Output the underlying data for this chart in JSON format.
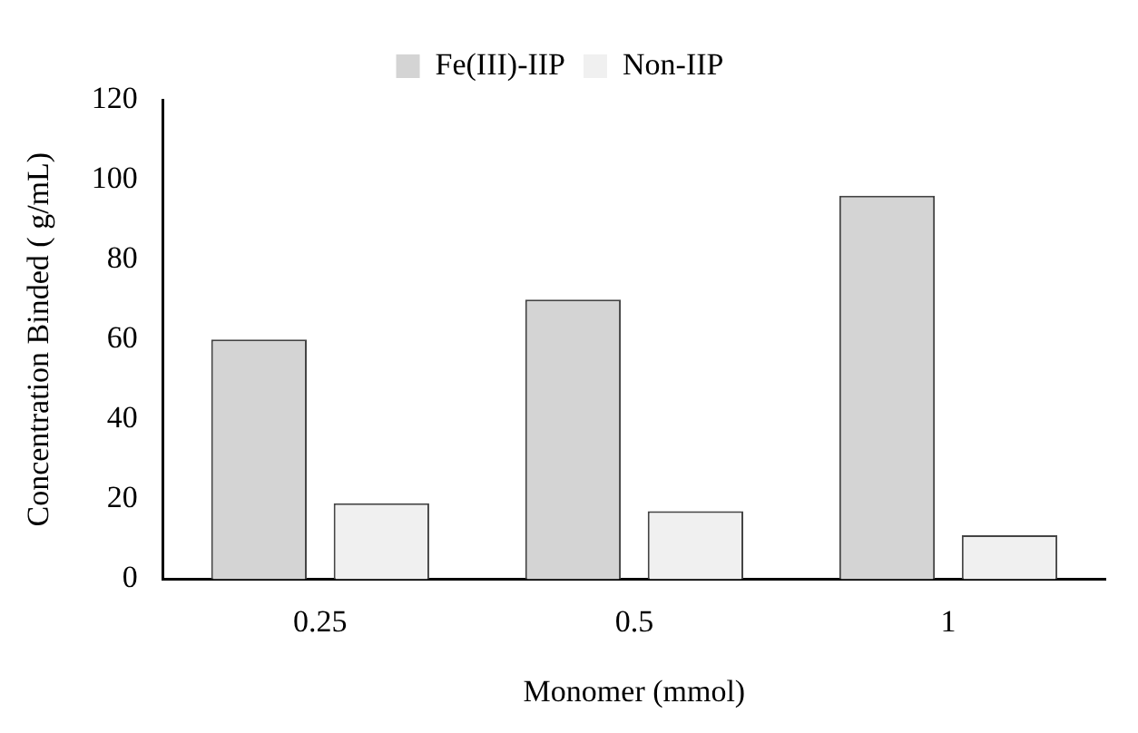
{
  "chart_data": {
    "type": "bar",
    "xlabel": "Monomer (mmol)",
    "ylabel": "Concentration Binded ( g/mL)",
    "categories": [
      "0.25",
      "0.5",
      "1"
    ],
    "series": [
      {
        "name": "Fe(III)-IIP",
        "color": "#d4d4d4",
        "values": [
          60,
          70,
          96
        ]
      },
      {
        "name": "Non-IIP",
        "color": "#f0f0f0",
        "values": [
          19,
          17,
          11
        ]
      }
    ],
    "ylim": [
      0,
      120
    ],
    "yticks": [
      0,
      20,
      40,
      60,
      80,
      100,
      120
    ],
    "grid": false,
    "legend": "top"
  }
}
